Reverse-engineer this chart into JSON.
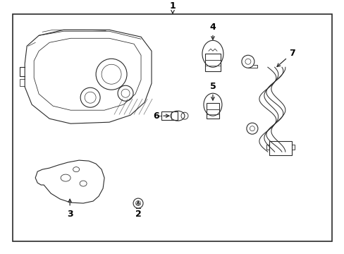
{
  "background_color": "#ffffff",
  "line_color": "#2a2a2a",
  "text_color": "#000000",
  "fig_width": 4.89,
  "fig_height": 3.6,
  "dpi": 100,
  "labels": [
    "1",
    "2",
    "3",
    "4",
    "5",
    "6",
    "7"
  ]
}
